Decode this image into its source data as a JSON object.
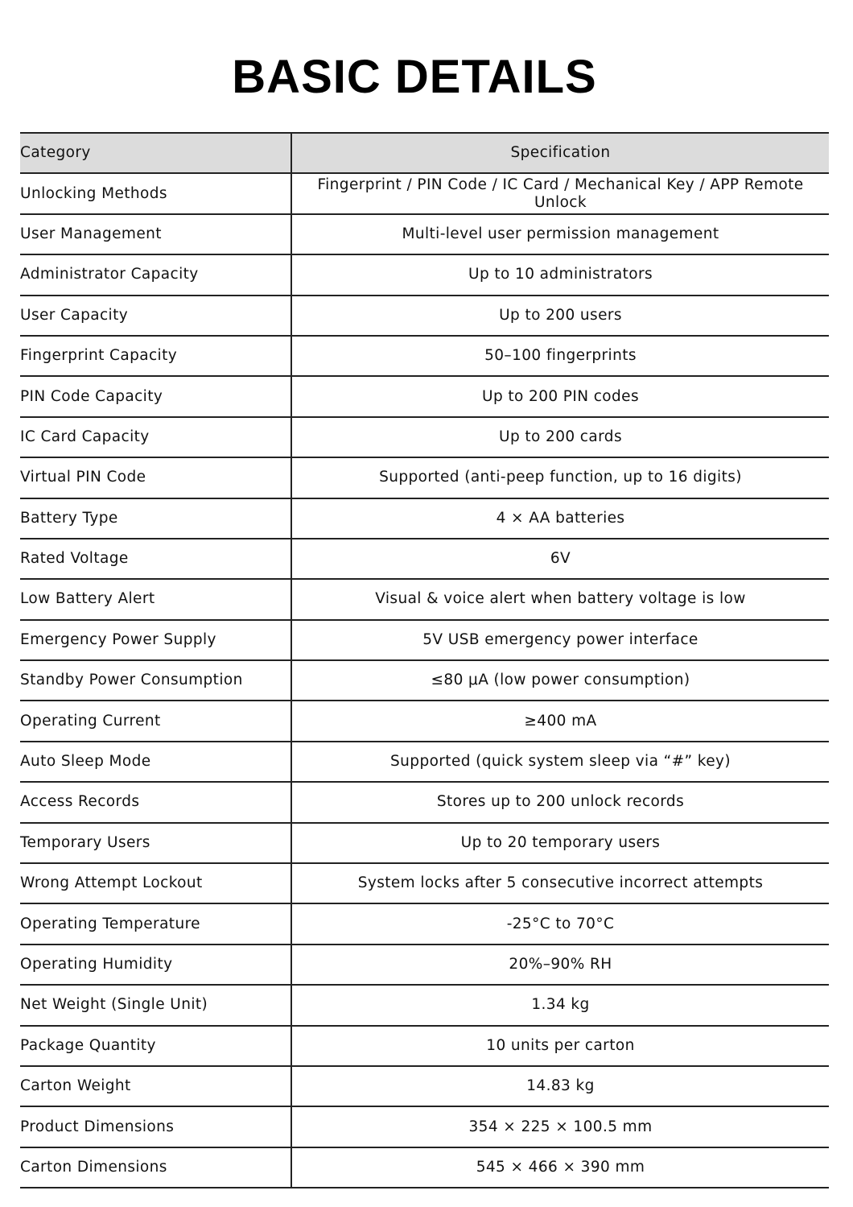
{
  "title": "BASIC DETAILS",
  "table": {
    "headers": [
      "Category",
      "Specification"
    ],
    "rows": [
      [
        "Unlocking Methods",
        "Fingerprint / PIN Code / IC Card / Mechanical Key / APP Remote Unlock"
      ],
      [
        "User Management",
        "Multi-level user permission management"
      ],
      [
        "Administrator Capacity",
        "Up to 10 administrators"
      ],
      [
        "User Capacity",
        "Up to 200 users"
      ],
      [
        "Fingerprint Capacity",
        "50–100 fingerprints"
      ],
      [
        "PIN Code Capacity",
        "Up to 200 PIN codes"
      ],
      [
        "IC Card Capacity",
        "Up to 200 cards"
      ],
      [
        "Virtual PIN Code",
        "Supported (anti-peep function, up to 16 digits)"
      ],
      [
        "Battery Type",
        "4 × AA batteries"
      ],
      [
        "Rated Voltage",
        "6V"
      ],
      [
        "Low Battery Alert",
        "Visual & voice alert when battery voltage is low"
      ],
      [
        "Emergency Power Supply",
        "5V USB emergency power interface"
      ],
      [
        "Standby Power Consumption",
        "≤80 μA (low power consumption)"
      ],
      [
        "Operating Current",
        "≥400 mA"
      ],
      [
        "Auto Sleep Mode",
        "Supported (quick system sleep via “#” key)"
      ],
      [
        "Access Records",
        "Stores up to 200 unlock records"
      ],
      [
        "Temporary Users",
        "Up to 20 temporary users"
      ],
      [
        "Wrong Attempt Lockout",
        "System locks after 5 consecutive incorrect attempts"
      ],
      [
        "Operating Temperature",
        "-25°C to 70°C"
      ],
      [
        "Operating Humidity",
        "20%–90% RH"
      ],
      [
        "Net Weight (Single Unit)",
        "1.34 kg"
      ],
      [
        "Package Quantity",
        "10 units per carton"
      ],
      [
        "Carton Weight",
        "14.83 kg"
      ],
      [
        "Product Dimensions",
        "354 × 225 × 100.5 mm"
      ],
      [
        "Carton Dimensions",
        "545 × 466 × 390 mm"
      ]
    ]
  }
}
